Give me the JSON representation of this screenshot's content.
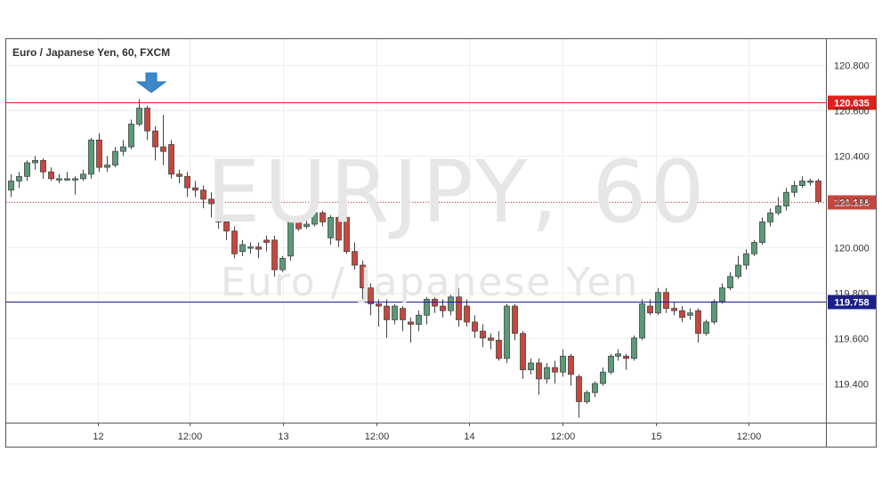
{
  "chart_data": {
    "type": "candlestick",
    "title": "Euro / Japanese Yen, 60, FXCM",
    "watermark": {
      "symbol": "EURJPY, 60",
      "description": "Euro / Japanese Yen"
    },
    "ylim": [
      119.2,
      120.9
    ],
    "y_ticks": [
      "120.800",
      "120.600",
      "120.400",
      "120.200",
      "120.000",
      "119.800",
      "119.600",
      "119.400"
    ],
    "x_ticks": [
      "12",
      "12:00",
      "13",
      "12:00",
      "14",
      "12:00",
      "15",
      "12:00"
    ],
    "colors": {
      "up": "#5b9a78",
      "down": "#c8473d",
      "resistance": "#e0201b",
      "support": "#1b1f8a",
      "current": "#c8473d",
      "arrow": "#3a87c9"
    },
    "horizontal_lines": [
      {
        "label": "120.635",
        "value": 120.635,
        "role": "resistance"
      },
      {
        "label": "119.758",
        "value": 119.758,
        "role": "support"
      }
    ],
    "last_price": {
      "label": "120.198",
      "value": 120.198
    },
    "candles": [
      [
        120.25,
        120.29,
        120.32,
        120.22
      ],
      [
        120.29,
        120.31,
        120.33,
        120.26
      ],
      [
        120.31,
        120.37,
        120.38,
        120.29
      ],
      [
        120.37,
        120.38,
        120.4,
        120.34
      ],
      [
        120.38,
        120.33,
        120.39,
        120.3
      ],
      [
        120.33,
        120.3,
        120.35,
        120.29
      ],
      [
        120.3,
        120.3,
        120.32,
        120.28
      ],
      [
        120.3,
        120.3,
        120.33,
        120.29
      ],
      [
        120.3,
        120.3,
        120.31,
        120.23
      ],
      [
        120.3,
        120.32,
        120.34,
        120.29
      ],
      [
        120.32,
        120.47,
        120.48,
        120.3
      ],
      [
        120.47,
        120.35,
        120.5,
        120.33
      ],
      [
        120.35,
        120.36,
        120.4,
        120.33
      ],
      [
        120.36,
        120.42,
        120.44,
        120.35
      ],
      [
        120.42,
        120.44,
        120.47,
        120.4
      ],
      [
        120.44,
        120.54,
        120.56,
        120.43
      ],
      [
        120.54,
        120.61,
        120.65,
        120.53
      ],
      [
        120.61,
        120.51,
        120.62,
        120.47
      ],
      [
        120.51,
        120.44,
        120.53,
        120.38
      ],
      [
        120.44,
        120.42,
        120.58,
        120.36
      ],
      [
        120.45,
        120.32,
        120.47,
        120.3
      ],
      [
        120.32,
        120.31,
        120.34,
        120.28
      ],
      [
        120.31,
        120.26,
        120.33,
        120.22
      ],
      [
        120.26,
        120.25,
        120.29,
        120.22
      ],
      [
        120.25,
        120.21,
        120.27,
        120.17
      ],
      [
        120.21,
        120.19,
        120.24,
        120.13
      ],
      [
        120.18,
        120.11,
        120.19,
        120.08
      ],
      [
        120.11,
        120.07,
        120.13,
        120.03
      ],
      [
        120.07,
        119.97,
        120.09,
        119.95
      ],
      [
        119.98,
        120.01,
        120.03,
        119.96
      ],
      [
        120.0,
        120.0,
        120.02,
        119.97
      ],
      [
        120.0,
        119.99,
        120.02,
        119.95
      ],
      [
        120.03,
        120.02,
        120.05,
        119.98
      ],
      [
        120.03,
        119.9,
        120.05,
        119.87
      ],
      [
        119.9,
        119.95,
        119.96,
        119.89
      ],
      [
        119.96,
        120.11,
        120.13,
        119.94
      ],
      [
        120.11,
        120.08,
        120.12,
        120.07
      ],
      [
        120.09,
        120.1,
        120.13,
        120.08
      ],
      [
        120.1,
        120.15,
        120.17,
        120.09
      ],
      [
        120.15,
        120.11,
        120.16,
        120.09
      ],
      [
        120.04,
        120.13,
        120.14,
        120.01
      ],
      [
        120.13,
        120.03,
        120.14,
        120.0
      ],
      [
        120.13,
        119.98,
        120.14,
        119.97
      ],
      [
        119.98,
        119.92,
        120.02,
        119.9
      ],
      [
        119.92,
        119.82,
        119.94,
        119.77
      ],
      [
        119.82,
        119.75,
        119.84,
        119.7
      ],
      [
        119.75,
        119.74,
        119.77,
        119.65
      ],
      [
        119.74,
        119.68,
        119.77,
        119.6
      ],
      [
        119.68,
        119.74,
        119.75,
        119.66
      ],
      [
        119.73,
        119.68,
        119.74,
        119.63
      ],
      [
        119.67,
        119.66,
        119.69,
        119.58
      ],
      [
        119.66,
        119.7,
        119.72,
        119.63
      ],
      [
        119.7,
        119.77,
        119.78,
        119.66
      ],
      [
        119.77,
        119.74,
        119.78,
        119.71
      ],
      [
        119.74,
        119.72,
        119.77,
        119.69
      ],
      [
        119.72,
        119.78,
        119.79,
        119.7
      ],
      [
        119.78,
        119.68,
        119.82,
        119.65
      ],
      [
        119.74,
        119.67,
        119.77,
        119.65
      ],
      [
        119.67,
        119.63,
        119.7,
        119.6
      ],
      [
        119.63,
        119.6,
        119.66,
        119.56
      ],
      [
        119.6,
        119.59,
        119.62,
        119.55
      ],
      [
        119.59,
        119.51,
        119.63,
        119.5
      ],
      [
        119.51,
        119.74,
        119.75,
        119.49
      ],
      [
        119.74,
        119.62,
        119.75,
        119.59
      ],
      [
        119.62,
        119.46,
        119.63,
        119.42
      ],
      [
        119.46,
        119.49,
        119.51,
        119.44
      ],
      [
        119.49,
        119.42,
        119.51,
        119.35
      ],
      [
        119.42,
        119.47,
        119.49,
        119.4
      ],
      [
        119.47,
        119.45,
        119.5,
        119.4
      ],
      [
        119.45,
        119.52,
        119.55,
        119.43
      ],
      [
        119.52,
        119.44,
        119.53,
        119.39
      ],
      [
        119.43,
        119.32,
        119.44,
        119.25
      ],
      [
        119.32,
        119.36,
        119.37,
        119.31
      ],
      [
        119.36,
        119.4,
        119.41,
        119.34
      ],
      [
        119.4,
        119.45,
        119.47,
        119.39
      ],
      [
        119.45,
        119.52,
        119.53,
        119.44
      ],
      [
        119.52,
        119.53,
        119.55,
        119.5
      ],
      [
        119.52,
        119.51,
        119.53,
        119.46
      ],
      [
        119.51,
        119.6,
        119.61,
        119.5
      ],
      [
        119.6,
        119.75,
        119.77,
        119.59
      ],
      [
        119.74,
        119.71,
        119.77,
        119.7
      ],
      [
        119.71,
        119.8,
        119.82,
        119.7
      ],
      [
        119.8,
        119.73,
        119.82,
        119.71
      ],
      [
        119.73,
        119.72,
        119.76,
        119.7
      ],
      [
        119.72,
        119.69,
        119.74,
        119.67
      ],
      [
        119.7,
        119.71,
        119.73,
        119.68
      ],
      [
        119.72,
        119.62,
        119.73,
        119.58
      ],
      [
        119.62,
        119.67,
        119.68,
        119.61
      ],
      [
        119.67,
        119.76,
        119.77,
        119.66
      ],
      [
        119.76,
        119.82,
        119.84,
        119.75
      ],
      [
        119.82,
        119.87,
        119.89,
        119.81
      ],
      [
        119.87,
        119.92,
        119.96,
        119.86
      ],
      [
        119.92,
        119.97,
        119.99,
        119.9
      ],
      [
        119.97,
        120.02,
        120.03,
        119.96
      ],
      [
        120.02,
        120.11,
        120.13,
        120.01
      ],
      [
        120.11,
        120.15,
        120.17,
        120.09
      ],
      [
        120.15,
        120.18,
        120.22,
        120.14
      ],
      [
        120.18,
        120.24,
        120.26,
        120.16
      ],
      [
        120.24,
        120.27,
        120.29,
        120.22
      ],
      [
        120.27,
        120.29,
        120.31,
        120.26
      ],
      [
        120.29,
        120.29,
        120.3,
        120.27
      ],
      [
        120.29,
        120.2,
        120.3,
        120.19
      ]
    ]
  }
}
